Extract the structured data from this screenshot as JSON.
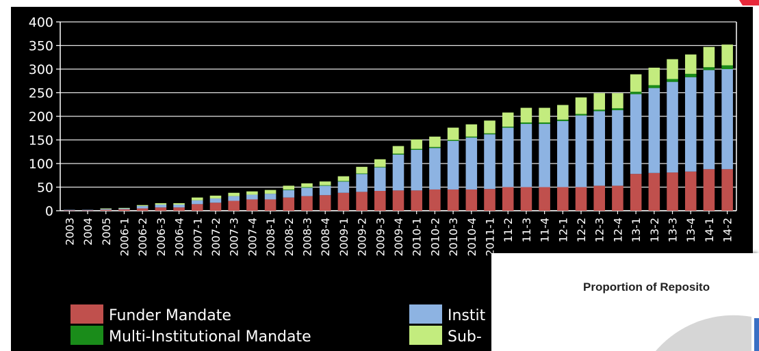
{
  "chart_data": {
    "type": "bar",
    "stacked": true,
    "background": "#000000",
    "categories": [
      "2003",
      "2004",
      "2005",
      "2006-1",
      "2006-2",
      "2006-3",
      "2006-4",
      "2007-1",
      "2007-2",
      "2007-3",
      "2007-4",
      "2008-1",
      "2008-2",
      "2008-3",
      "2008-4",
      "2009-1",
      "2009-2",
      "2009-3",
      "2009-4",
      "2010-1",
      "2010-2",
      "2010-3",
      "2010-4",
      "2011-1",
      "2011-2",
      "2011-3",
      "2011-4",
      "2012-1",
      "2012-2",
      "2012-3",
      "2012-4",
      "2013-1",
      "2013-2",
      "2013-3",
      "2013-4",
      "2014-1",
      "2014-2"
    ],
    "visible_tick_labels": [
      "2003",
      "2004",
      "2005",
      "2006-1",
      "2006-2",
      "2006-3",
      "2006-4",
      "2007-1",
      "2007-2",
      "2007-3",
      "2007-4",
      "2008-1",
      "2008-2",
      "2008-3",
      "2008-4",
      "2009-1",
      "2009-2",
      "2009-3",
      "2009-4",
      "2010-1",
      "2010-2",
      "2010-3",
      "2010-4",
      "2011-1",
      "11-2",
      "11-3",
      "11-4",
      "12-1",
      "12-2",
      "12-3",
      "12-4",
      "13-1",
      "13-2",
      "13-3",
      "13-4",
      "14-1",
      "14-2"
    ],
    "series": [
      {
        "name": "Funder Mandate",
        "color": "#c0504d",
        "values": [
          1,
          1,
          2,
          3,
          5,
          7,
          7,
          14,
          17,
          21,
          24,
          24,
          28,
          31,
          33,
          38,
          40,
          42,
          43,
          43,
          45,
          45,
          45,
          46,
          50,
          50,
          50,
          50,
          50,
          53,
          53,
          78,
          80,
          81,
          83,
          88,
          88
        ]
      },
      {
        "name": "Institutional Mandate",
        "color": "#8db3e2",
        "values": [
          1,
          1,
          2,
          2,
          5,
          6,
          6,
          8,
          9,
          10,
          10,
          12,
          16,
          18,
          20,
          24,
          38,
          50,
          76,
          86,
          88,
          103,
          110,
          116,
          126,
          134,
          134,
          140,
          152,
          158,
          160,
          169,
          180,
          192,
          200,
          210,
          212
        ]
      },
      {
        "name": "Multi-Institutional Mandate",
        "color": "#1a8c1a",
        "values": [
          0,
          0,
          0,
          0,
          0,
          0,
          0,
          0,
          0,
          0,
          0,
          0,
          1,
          1,
          1,
          1,
          1,
          1,
          2,
          2,
          2,
          2,
          2,
          2,
          2,
          3,
          3,
          3,
          3,
          3,
          4,
          5,
          6,
          6,
          7,
          6,
          8
        ]
      },
      {
        "name": "Sub-Institutional Mandate",
        "color": "#c3ec7e",
        "values": [
          0,
          0,
          1,
          1,
          2,
          3,
          3,
          6,
          6,
          7,
          7,
          8,
          8,
          8,
          8,
          10,
          14,
          16,
          16,
          20,
          22,
          26,
          26,
          27,
          30,
          31,
          31,
          31,
          35,
          35,
          32,
          37,
          37,
          42,
          41,
          43,
          44
        ]
      }
    ],
    "ylim": [
      0,
      400
    ],
    "yticks": [
      0,
      50,
      100,
      150,
      200,
      250,
      300,
      350,
      400
    ],
    "grid": true,
    "legend_placement": "bottom",
    "legend": [
      {
        "text": "Funder Mandate",
        "color": "#c0504d"
      },
      {
        "text": "Multi-Institutional Mandate",
        "color": "#1a8c1a"
      },
      {
        "text": "Instit",
        "color": "#8db3e2"
      },
      {
        "text": "Sub-",
        "color": "#c3ec7e"
      }
    ]
  },
  "inset": {
    "title": "Proportion of Reposito"
  },
  "corner_mark_color": "#e8293b"
}
